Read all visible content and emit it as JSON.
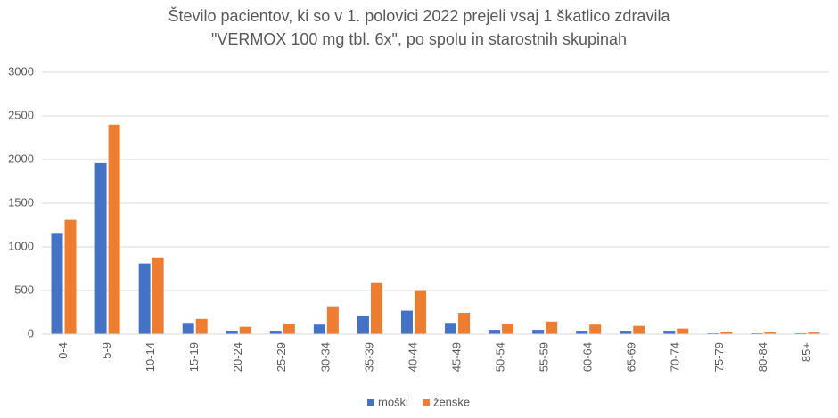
{
  "chart_data": {
    "type": "bar",
    "title": [
      "Število pacientov, ki so v 1. polovici 2022 prejeli vsaj 1 škatlico zdravila",
      "\"VERMOX 100 mg tbl. 6x\", po spolu in starostnih skupinah"
    ],
    "categories": [
      "0-4",
      "5-9",
      "10-14",
      "15-19",
      "20-24",
      "25-29",
      "30-34",
      "35-39",
      "40-44",
      "45-49",
      "50-54",
      "55-59",
      "60-64",
      "65-69",
      "70-74",
      "75-79",
      "80-84",
      "85+"
    ],
    "series": [
      {
        "name": "moški",
        "color": "#4472c4",
        "values": [
          1160,
          1960,
          810,
          130,
          40,
          40,
          110,
          210,
          270,
          130,
          50,
          50,
          40,
          40,
          40,
          10,
          10,
          10
        ]
      },
      {
        "name": "ženske",
        "color": "#ed7d31",
        "values": [
          1310,
          2400,
          880,
          175,
          85,
          120,
          320,
          595,
          505,
          245,
          120,
          145,
          110,
          95,
          65,
          30,
          20,
          20
        ]
      }
    ],
    "ylim": [
      0,
      3000
    ],
    "yticks": [
      0,
      500,
      1000,
      1500,
      2000,
      2500,
      3000
    ],
    "grid": true,
    "legend": "bottom"
  }
}
